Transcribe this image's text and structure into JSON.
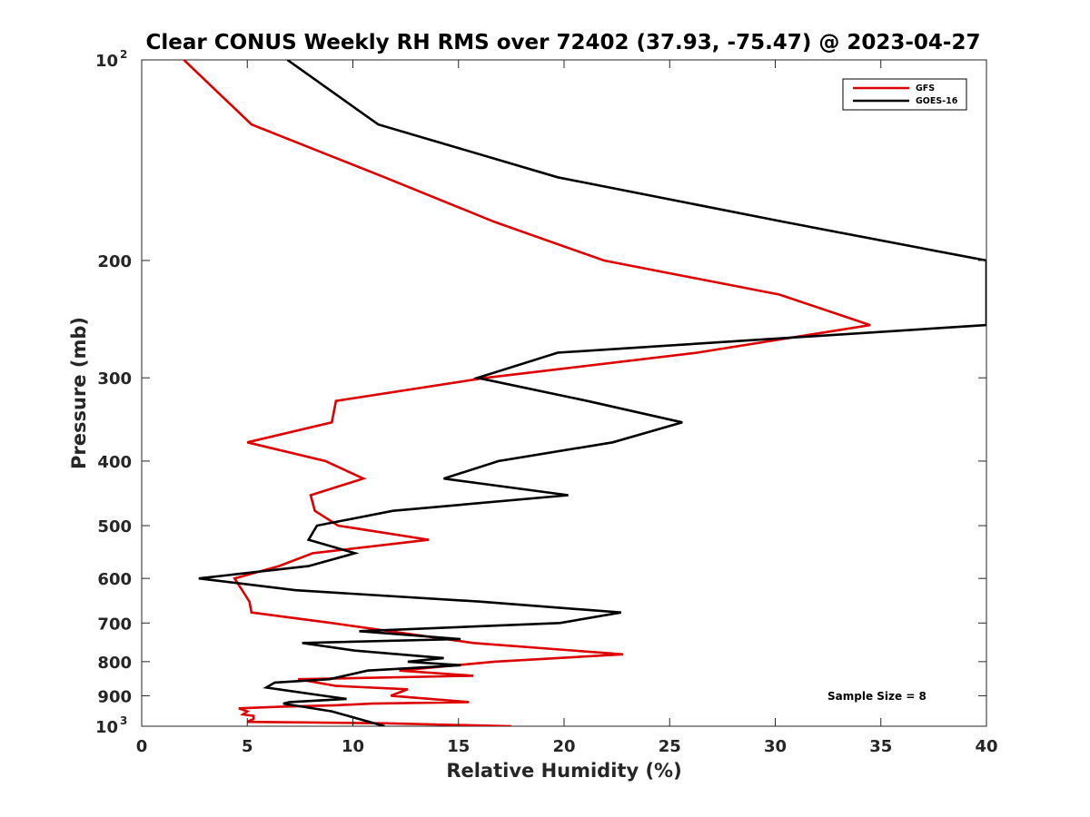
{
  "chart_data": {
    "type": "line",
    "title": "Clear CONUS Weekly RH RMS over 72402 (37.93, -75.47) @ 2023-04-27",
    "xlabel": "Relative Humidity (%)",
    "ylabel": "Pressure (mb)",
    "xlim": [
      0,
      40
    ],
    "ylim": [
      100,
      1000
    ],
    "y_scale": "log",
    "y_reversed": true,
    "x_ticks": [
      0,
      5,
      10,
      15,
      20,
      25,
      30,
      35,
      40
    ],
    "y_ticks": [
      {
        "value": 100,
        "base": "10",
        "exp": "2"
      },
      {
        "value": 200,
        "label": "200"
      },
      {
        "value": 300,
        "label": "300"
      },
      {
        "value": 400,
        "label": "400"
      },
      {
        "value": 500,
        "label": "500"
      },
      {
        "value": 600,
        "label": "600"
      },
      {
        "value": 700,
        "label": "700"
      },
      {
        "value": 800,
        "label": "800"
      },
      {
        "value": 900,
        "label": "900"
      },
      {
        "value": 1000,
        "base": "10",
        "exp": "3"
      }
    ],
    "legend_position": "top-right",
    "annotation": "Sample Size = 8",
    "series": [
      {
        "name": "GFS",
        "color": "#dd0000",
        "points": [
          [
            2.0,
            100
          ],
          [
            5.2,
            125
          ],
          [
            11.5,
            150
          ],
          [
            16.7,
            175
          ],
          [
            21.9,
            200
          ],
          [
            30.2,
            225
          ],
          [
            34.5,
            250
          ],
          [
            26.3,
            275
          ],
          [
            16.3,
            300
          ],
          [
            9.2,
            325
          ],
          [
            9.0,
            350
          ],
          [
            5.0,
            375
          ],
          [
            8.7,
            400
          ],
          [
            10.5,
            425
          ],
          [
            8.0,
            450
          ],
          [
            8.2,
            475
          ],
          [
            9.3,
            500
          ],
          [
            13.6,
            525
          ],
          [
            8.1,
            550
          ],
          [
            6.5,
            575
          ],
          [
            4.4,
            600
          ],
          [
            5.1,
            650
          ],
          [
            5.2,
            675
          ],
          [
            9.0,
            700
          ],
          [
            15.7,
            750
          ],
          [
            22.8,
            780
          ],
          [
            16.7,
            800
          ],
          [
            12.2,
            825
          ],
          [
            15.7,
            840
          ],
          [
            7.4,
            850
          ],
          [
            9.2,
            870
          ],
          [
            12.6,
            880
          ],
          [
            11.8,
            900
          ],
          [
            15.5,
            920
          ],
          [
            10.9,
            925
          ],
          [
            9.2,
            930
          ],
          [
            6.5,
            935
          ],
          [
            4.6,
            940
          ],
          [
            5.0,
            950
          ],
          [
            4.8,
            960
          ],
          [
            5.3,
            965
          ],
          [
            5.3,
            975
          ],
          [
            5.0,
            985
          ],
          [
            11.6,
            990
          ],
          [
            17.5,
            1000
          ]
        ]
      },
      {
        "name": "GOES-16",
        "color": "#000000",
        "points": [
          [
            6.9,
            100
          ],
          [
            11.2,
            125
          ],
          [
            19.7,
            150
          ],
          [
            30.4,
            175
          ],
          [
            40.0,
            200
          ],
          [
            40.0,
            250
          ],
          [
            19.7,
            275
          ],
          [
            15.9,
            300
          ],
          [
            21.1,
            325
          ],
          [
            25.6,
            350
          ],
          [
            22.3,
            375
          ],
          [
            16.9,
            400
          ],
          [
            14.3,
            425
          ],
          [
            20.2,
            450
          ],
          [
            11.9,
            475
          ],
          [
            8.3,
            500
          ],
          [
            7.9,
            525
          ],
          [
            10.1,
            550
          ],
          [
            7.9,
            575
          ],
          [
            2.7,
            600
          ],
          [
            7.3,
            625
          ],
          [
            16.0,
            650
          ],
          [
            22.7,
            675
          ],
          [
            19.8,
            700
          ],
          [
            10.3,
            720
          ],
          [
            15.1,
            740
          ],
          [
            7.6,
            750
          ],
          [
            10.1,
            770
          ],
          [
            14.3,
            790
          ],
          [
            12.6,
            800
          ],
          [
            15.1,
            810
          ],
          [
            10.7,
            825
          ],
          [
            8.9,
            850
          ],
          [
            6.3,
            860
          ],
          [
            5.9,
            875
          ],
          [
            8.6,
            900
          ],
          [
            9.7,
            910
          ],
          [
            7.0,
            920
          ],
          [
            6.7,
            925
          ],
          [
            9.0,
            950
          ],
          [
            11.5,
            1000
          ]
        ]
      }
    ]
  }
}
